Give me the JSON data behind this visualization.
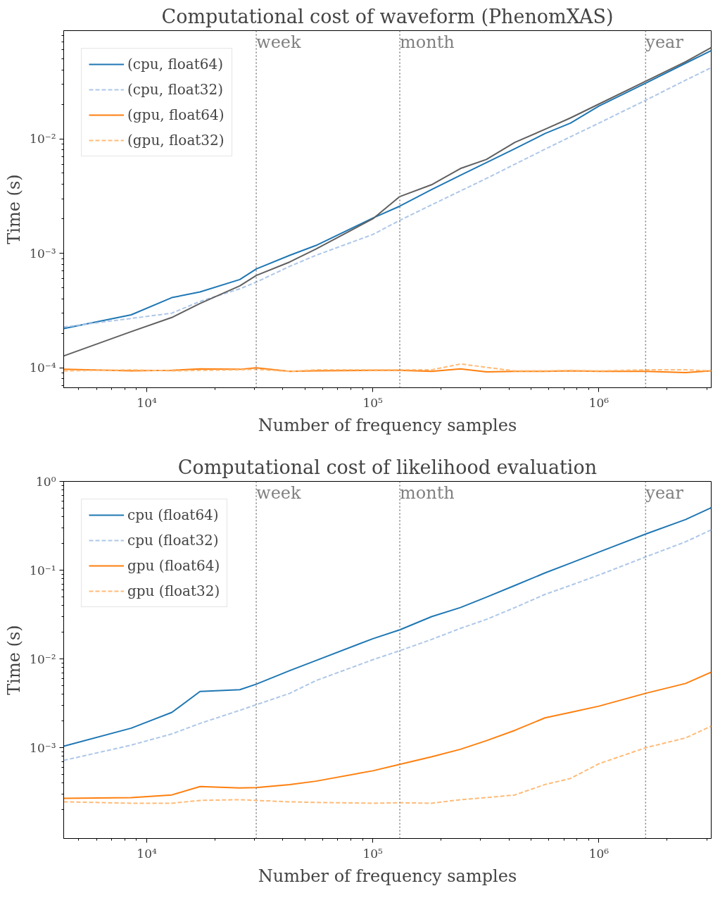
{
  "chart_data": [
    {
      "type": "line",
      "title": "Computational cost of waveform (PhenomXAS)",
      "xlabel": "Number of frequency samples",
      "ylabel": "Time (s)",
      "log": "xy",
      "grid": false,
      "legend": "top left",
      "marker": "none",
      "x": [
        4290,
        8530,
        12900,
        17200,
        25800,
        30500,
        42900,
        56000,
        100000,
        131600,
        182000,
        244000,
        318000,
        425000,
        577000,
        748000,
        1000000,
        1610000,
        2420000,
        3140000
      ],
      "xlim": [
        4290,
        3140000
      ],
      "ylim": [
        6.7e-05,
        0.088
      ],
      "xticks": [
        {
          "value": 10000,
          "label": "10⁴"
        },
        {
          "value": 100000,
          "label": "10⁵"
        },
        {
          "value": 1000000,
          "label": "10⁶"
        }
      ],
      "yticks": [
        {
          "value": 0.0001,
          "label": "10⁻⁴"
        },
        {
          "value": 0.001,
          "label": "10⁻³"
        },
        {
          "value": 0.01,
          "label": "10⁻²"
        }
      ],
      "ref_lines": [
        {
          "axis": "x",
          "value": 30500,
          "label": "week",
          "color": "#808080",
          "line_style": "dotted"
        },
        {
          "axis": "x",
          "value": 131600,
          "label": "month",
          "color": "#808080",
          "line_style": "dotted"
        },
        {
          "axis": "x",
          "value": 1610000,
          "label": "year",
          "color": "#808080",
          "line_style": "dotted"
        }
      ],
      "series": [
        {
          "name": "(cpu, float64)",
          "color": "#1f77b4",
          "line_style": "solid",
          "values": [
            0.00022,
            0.00029,
            0.00041,
            0.00046,
            0.00059,
            0.00073,
            0.00096,
            0.00117,
            0.00203,
            0.00258,
            0.0036,
            0.0048,
            0.0062,
            0.0082,
            0.0111,
            0.0137,
            0.0193,
            0.0306,
            0.0457,
            0.0589
          ]
        },
        {
          "name": "(cpu, float32)",
          "color": "#aec7e8",
          "line_style": "dashed",
          "values": [
            0.000227,
            0.00027,
            0.0003,
            0.00038,
            0.00049,
            0.00056,
            0.00077,
            0.00096,
            0.00146,
            0.00194,
            0.00265,
            0.0035,
            0.0045,
            0.006,
            0.0081,
            0.0104,
            0.0137,
            0.0217,
            0.0325,
            0.0418
          ]
        },
        {
          "name": "(gpu, float64)",
          "color": "#ff7f0e",
          "line_style": "solid",
          "values": [
            9.7e-05,
            9.4e-05,
            9.5e-05,
            9.8e-05,
            9.7e-05,
            0.0001,
            9.3e-05,
            9.4e-05,
            9.5e-05,
            9.5e-05,
            9.3e-05,
            9.8e-05,
            9.2e-05,
            9.3e-05,
            9.3e-05,
            9.4e-05,
            9.3e-05,
            9.3e-05,
            9.1e-05,
            9.4e-05
          ]
        },
        {
          "name": "(gpu, float32)",
          "color": "#ffbb78",
          "line_style": "dashed",
          "values": [
            9.4e-05,
            9.6e-05,
            9.4e-05,
            9.5e-05,
            9.6e-05,
            9.7e-05,
            9.3e-05,
            9.6e-05,
            9.6e-05,
            9.6e-05,
            9.6e-05,
            0.000108,
            0.000101,
            9.4e-05,
            9.4e-05,
            9.5e-05,
            9.4e-05,
            9.6e-05,
            9.6e-05,
            9.4e-05
          ]
        },
        {
          "color": "#606060",
          "line_style": "solid",
          "values": [
            0.000127,
            0.000207,
            0.000275,
            0.000365,
            0.00052,
            0.00064,
            0.00084,
            0.00109,
            0.002,
            0.00313,
            0.00397,
            0.0055,
            0.0066,
            0.0093,
            0.0121,
            0.0152,
            0.0201,
            0.0318,
            0.0471,
            0.0625
          ]
        }
      ]
    },
    {
      "type": "line",
      "title": "Computational cost of likelihood evaluation",
      "xlabel": "Number of frequency samples",
      "ylabel": "Time (s)",
      "log": "xy",
      "grid": false,
      "legend": "top left",
      "marker": "none",
      "x": [
        4290,
        8530,
        12900,
        17200,
        25800,
        30500,
        42900,
        56000,
        100000,
        131600,
        182000,
        244000,
        318000,
        425000,
        577000,
        748000,
        1000000,
        1610000,
        2420000,
        3140000
      ],
      "xlim": [
        4290,
        3140000
      ],
      "ylim": [
        9.5e-05,
        1
      ],
      "xticks": [
        {
          "value": 10000,
          "label": "10⁴"
        },
        {
          "value": 100000,
          "label": "10⁵"
        },
        {
          "value": 1000000,
          "label": "10⁶"
        }
      ],
      "yticks": [
        {
          "value": 0.001,
          "label": "10⁻³"
        },
        {
          "value": 0.01,
          "label": "10⁻²"
        },
        {
          "value": 0.1,
          "label": "10⁻¹"
        },
        {
          "value": 1,
          "label": "10⁰"
        }
      ],
      "ref_lines": [
        {
          "axis": "x",
          "value": 30500,
          "label": "week",
          "color": "#808080",
          "line_style": "dotted"
        },
        {
          "axis": "x",
          "value": 131600,
          "label": "month",
          "color": "#808080",
          "line_style": "dotted"
        },
        {
          "axis": "x",
          "value": 1610000,
          "label": "year",
          "color": "#808080",
          "line_style": "dotted"
        }
      ],
      "series": [
        {
          "name": "cpu (float64)",
          "color": "#1f77b4",
          "line_style": "solid",
          "values": [
            0.00104,
            0.00166,
            0.0025,
            0.0043,
            0.0045,
            0.0052,
            0.0074,
            0.0096,
            0.0169,
            0.0213,
            0.03,
            0.0379,
            0.0496,
            0.0673,
            0.093,
            0.12,
            0.16,
            0.255,
            0.372,
            0.505
          ]
        },
        {
          "name": "cpu (float32)",
          "color": "#aec7e8",
          "line_style": "dashed",
          "values": [
            0.00072,
            0.00107,
            0.00143,
            0.00188,
            0.00264,
            0.00305,
            0.0041,
            0.0057,
            0.0098,
            0.0124,
            0.0166,
            0.0221,
            0.0279,
            0.0379,
            0.0533,
            0.0673,
            0.0882,
            0.141,
            0.209,
            0.284
          ]
        },
        {
          "name": "gpu (float64)",
          "color": "#ff7f0e",
          "line_style": "solid",
          "values": [
            0.000269,
            0.000274,
            0.000294,
            0.000365,
            0.000352,
            0.000356,
            0.000385,
            0.00042,
            0.00055,
            0.00065,
            0.00079,
            0.00096,
            0.0012,
            0.00157,
            0.00217,
            0.0025,
            0.00294,
            0.0041,
            0.0053,
            0.0071
          ]
        },
        {
          "name": "gpu (float32)",
          "color": "#ffbb78",
          "line_style": "dashed",
          "values": [
            0.000246,
            0.000237,
            0.000237,
            0.000255,
            0.00026,
            0.000255,
            0.000246,
            0.000242,
            0.000237,
            0.00024,
            0.000237,
            0.00026,
            0.000274,
            0.000294,
            0.000385,
            0.00045,
            0.00066,
            0.001,
            0.00129,
            0.00175
          ]
        }
      ]
    }
  ]
}
